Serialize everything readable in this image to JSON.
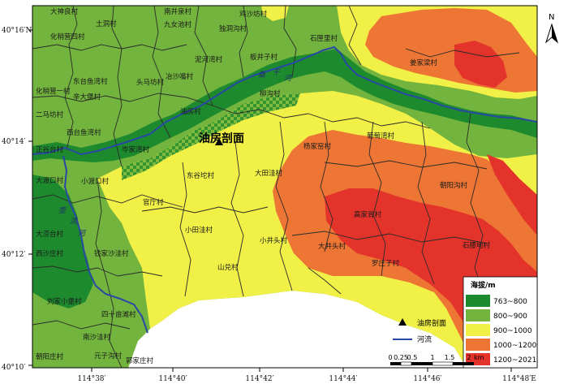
{
  "lat_ticks": [
    "40°16′N",
    "40°14′",
    "40°12′",
    "40°10′"
  ],
  "lon_ticks": [
    "114°38′",
    "114°40′",
    "114°42′",
    "114°44′",
    "114°46′",
    "114°48′E"
  ],
  "site_label": "油房剖面",
  "north_label": "N",
  "rivers": [
    {
      "name": "桑干河",
      "chars": [
        "桑",
        "干",
        "河"
      ]
    },
    {
      "name": "壶流河",
      "chars": [
        "壶",
        "流",
        "河"
      ]
    }
  ],
  "villages": [
    "大神良村",
    "南井泉村",
    "鸡沙坊村",
    "土洞村",
    "九女池村",
    "独洞沟村",
    "化稍营四村",
    "化稍营一村",
    "泥河湾村",
    "板井子村",
    "石匣里村",
    "姜家梁村",
    "东台鱼湾村",
    "头马坊村",
    "冶沙嘴村",
    "二马坊村",
    "辛大堡村",
    "柳沟村",
    "西台鱼湾村",
    "岑家湾村",
    "油房村",
    "葡萄湾村",
    "正谷台村",
    "杨家窑村",
    "大渡口村",
    "小渡口村",
    "东谷坨村",
    "大田洼村",
    "朝阳沟村",
    "官厅村",
    "高家背村",
    "大涝台村",
    "小田洼村",
    "小井头村",
    "西沙庄村",
    "钱家沙洼村",
    "大井头村",
    "石腰地村",
    "山兑村",
    "罗庄子村",
    "刘家小堡村",
    "四十亩滩村",
    "南沙洼村",
    "朝阳庄村",
    "元子沟村",
    "郭家庄村"
  ],
  "legend": {
    "title": "海拔/m",
    "classes": [
      {
        "label": "763~800",
        "color": "#1e8a2e"
      },
      {
        "label": "800~900",
        "color": "#72b43d"
      },
      {
        "label": "900~1000",
        "color": "#f0f046"
      },
      {
        "label": "1000~1200",
        "color": "#ed7634"
      },
      {
        "label": "1200~2021",
        "color": "#e4332b"
      }
    ],
    "site_item": "油房剖面",
    "river_item": "河流"
  },
  "scale": {
    "ticks": [
      "0",
      "0.25",
      "0.5",
      "1",
      "1.5",
      "2"
    ],
    "unit": "km"
  },
  "colors": {
    "river": "#2948a6",
    "boundary": "#2b2b2b",
    "frame": "#000000"
  }
}
